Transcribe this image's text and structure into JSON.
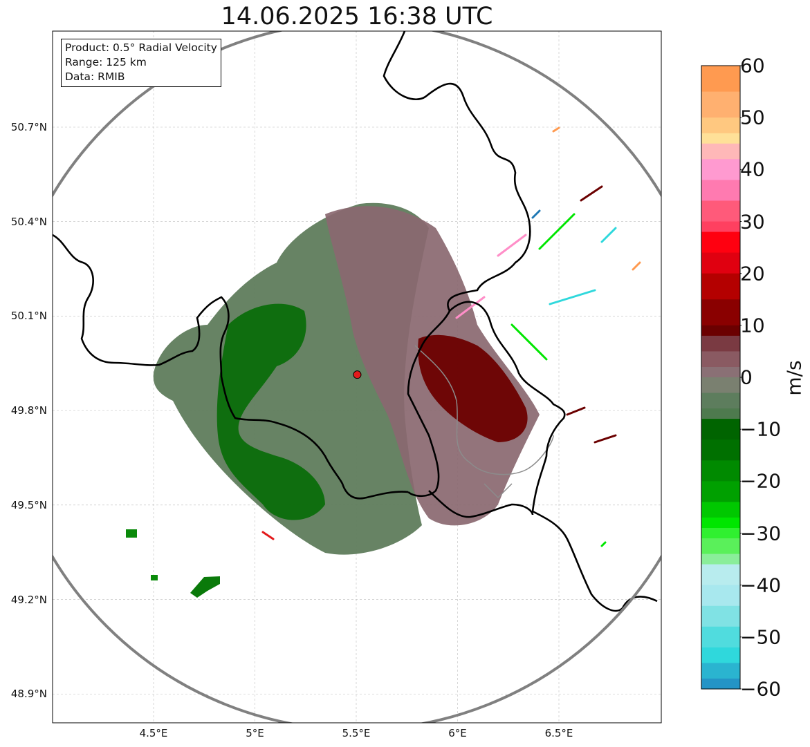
{
  "title": "14.06.2025 16:38 UTC",
  "info_box": {
    "product": "Product: 0.5° Radial Velocity",
    "range": "Range: 125 km",
    "data": "Data: RMIB"
  },
  "lat_ticks": [
    {
      "label": "50.7°N",
      "value": 50.7
    },
    {
      "label": "50.4°N",
      "value": 50.4
    },
    {
      "label": "50.1°N",
      "value": 50.1
    },
    {
      "label": "49.8°N",
      "value": 49.8
    },
    {
      "label": "49.5°N",
      "value": 49.5
    },
    {
      "label": "49.2°N",
      "value": 49.2
    },
    {
      "label": "48.9°N",
      "value": 48.9
    }
  ],
  "lon_ticks": [
    {
      "label": "4.5°E",
      "value": 4.5
    },
    {
      "label": "5°E",
      "value": 5.0
    },
    {
      "label": "5.5°E",
      "value": 5.5
    },
    {
      "label": "6°E",
      "value": 6.0
    },
    {
      "label": "6.5°E",
      "value": 6.5
    }
  ],
  "radar_site": {
    "lon": 5.505,
    "lat": 49.914,
    "color": "#e31a1c"
  },
  "colorbar": {
    "label": "m/s",
    "min": -60,
    "max": 60,
    "ticks": [
      "60",
      "50",
      "40",
      "30",
      "20",
      "10",
      "0",
      "−10",
      "−20",
      "−30",
      "−40",
      "−50",
      "−60"
    ],
    "colors": {
      "approaching_strong": "#1f78b4",
      "approaching_cyan": "#2fd8dc",
      "approaching_green": "#00e600",
      "near_zero_negative": "#5a7d5a",
      "near_zero_positive": "#8a6a70",
      "receding_dark": "#6b0000",
      "receding_red": "#ff0010",
      "receding_pink": "#ff8ec8",
      "receding_orange": "#ff9a50"
    }
  },
  "colors": {
    "range_ring": "#808080",
    "borders": "#000000",
    "river": "#8c8c8c",
    "grid": "#bdbdbd"
  }
}
